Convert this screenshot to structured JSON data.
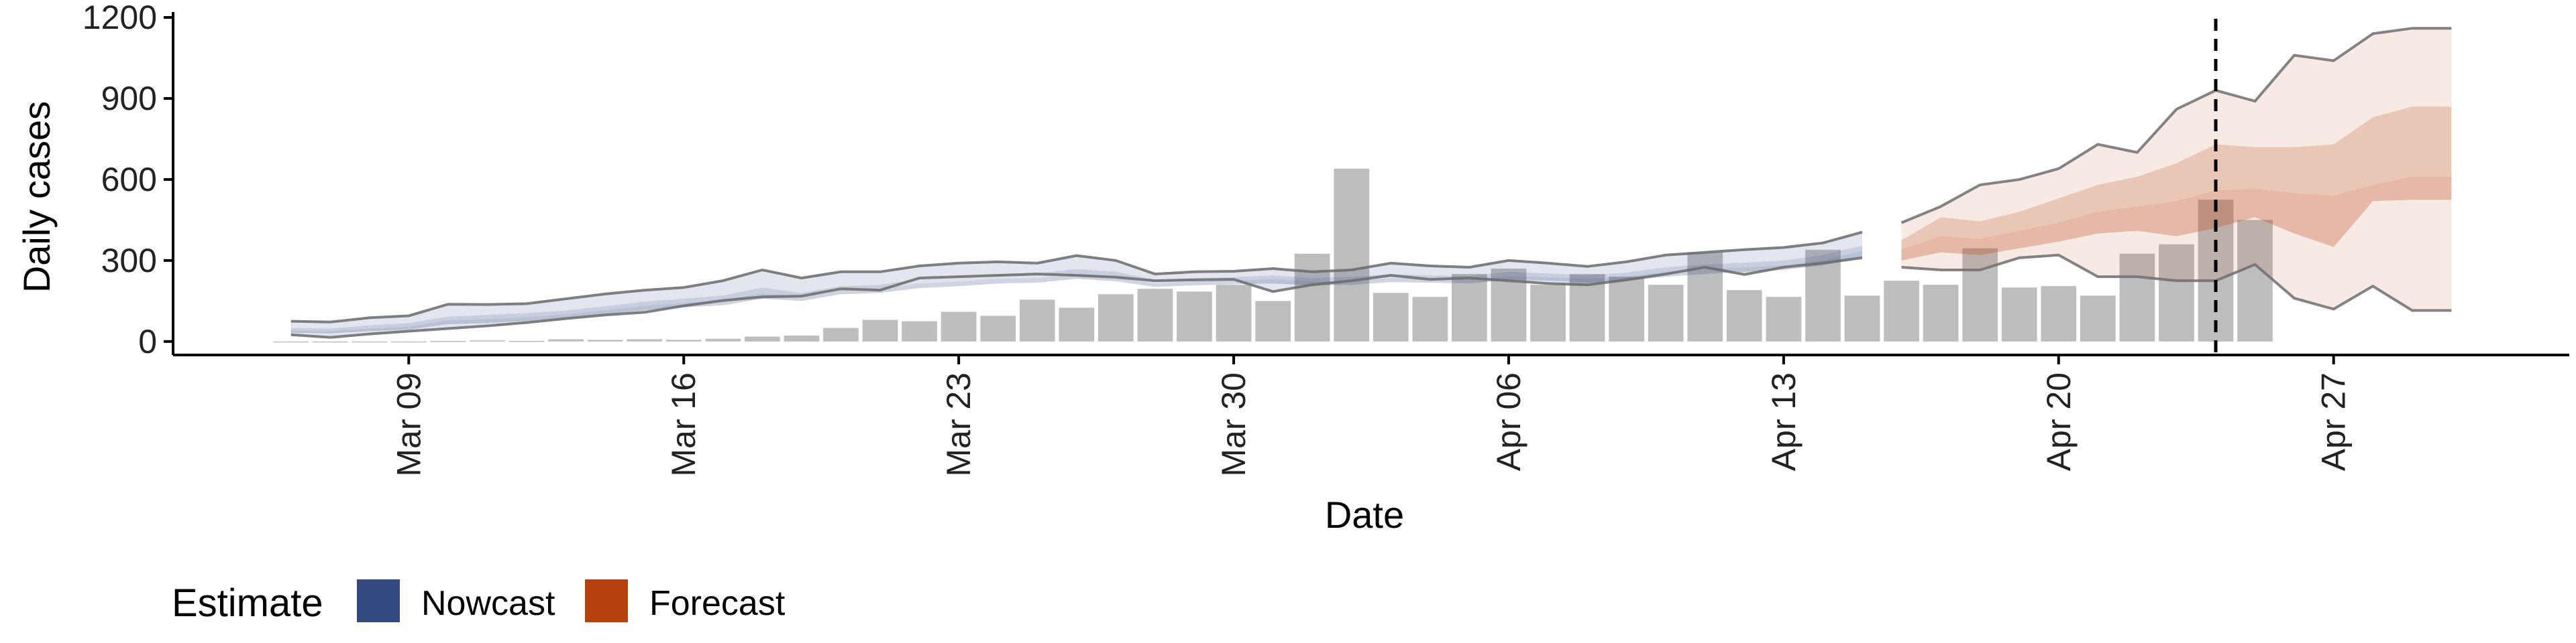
{
  "chart_data": {
    "type": "bar",
    "xlabel": "Date",
    "ylabel": "Daily cases",
    "ylim": [
      -50,
      1220
    ],
    "y_ticks": [
      0,
      300,
      600,
      900,
      1200
    ],
    "x_ticks": [
      {
        "date": "2020-03-09",
        "label": "Mar 09"
      },
      {
        "date": "2020-03-16",
        "label": "Mar 16"
      },
      {
        "date": "2020-03-23",
        "label": "Mar 23"
      },
      {
        "date": "2020-03-30",
        "label": "Mar 30"
      },
      {
        "date": "2020-04-06",
        "label": "Apr 06"
      },
      {
        "date": "2020-04-13",
        "label": "Apr 13"
      },
      {
        "date": "2020-04-20",
        "label": "Apr 20"
      },
      {
        "date": "2020-04-27",
        "label": "Apr 27"
      }
    ],
    "xlim": [
      "2020-03-03",
      "2020-05-03"
    ],
    "grid": false,
    "forecast_date": "2020-04-24",
    "colors": {
      "bars": "#bdbdbd",
      "nowcast": "#3c4e86",
      "forecast": "#c0491c",
      "outer_lines": "#6e6e6e"
    },
    "reported_cases": {
      "dates": [
        "2020-03-06",
        "2020-03-07",
        "2020-03-08",
        "2020-03-09",
        "2020-03-10",
        "2020-03-11",
        "2020-03-12",
        "2020-03-13",
        "2020-03-14",
        "2020-03-15",
        "2020-03-16",
        "2020-03-17",
        "2020-03-18",
        "2020-03-19",
        "2020-03-20",
        "2020-03-21",
        "2020-03-22",
        "2020-03-23",
        "2020-03-24",
        "2020-03-25",
        "2020-03-26",
        "2020-03-27",
        "2020-03-28",
        "2020-03-29",
        "2020-03-30",
        "2020-03-31",
        "2020-04-01",
        "2020-04-02",
        "2020-04-03",
        "2020-04-04",
        "2020-04-05",
        "2020-04-06",
        "2020-04-07",
        "2020-04-08",
        "2020-04-09",
        "2020-04-10",
        "2020-04-11",
        "2020-04-12",
        "2020-04-13",
        "2020-04-14",
        "2020-04-15",
        "2020-04-16",
        "2020-04-17",
        "2020-04-18",
        "2020-04-19",
        "2020-04-20",
        "2020-04-21",
        "2020-04-22",
        "2020-04-23",
        "2020-04-24",
        "2020-04-25"
      ],
      "values": [
        0,
        0,
        0,
        0,
        2,
        4,
        2,
        8,
        6,
        8,
        6,
        10,
        18,
        22,
        50,
        80,
        75,
        110,
        95,
        155,
        125,
        175,
        195,
        185,
        210,
        150,
        325,
        640,
        180,
        165,
        250,
        270,
        210,
        250,
        240,
        210,
        330,
        190,
        165,
        340,
        170,
        225,
        210,
        345,
        200,
        205,
        170,
        325,
        360,
        525,
        450
      ]
    },
    "series": [
      {
        "name": "Nowcast",
        "dates": [
          "2020-03-06",
          "2020-03-07",
          "2020-03-08",
          "2020-03-09",
          "2020-03-10",
          "2020-03-11",
          "2020-03-12",
          "2020-03-13",
          "2020-03-14",
          "2020-03-15",
          "2020-03-16",
          "2020-03-17",
          "2020-03-18",
          "2020-03-19",
          "2020-03-20",
          "2020-03-21",
          "2020-03-22",
          "2020-03-23",
          "2020-03-24",
          "2020-03-25",
          "2020-03-26",
          "2020-03-27",
          "2020-03-28",
          "2020-03-29",
          "2020-03-30",
          "2020-03-31",
          "2020-04-01",
          "2020-04-02",
          "2020-04-03",
          "2020-04-04",
          "2020-04-05",
          "2020-04-06",
          "2020-04-07",
          "2020-04-08",
          "2020-04-09",
          "2020-04-10",
          "2020-04-11",
          "2020-04-12",
          "2020-04-13",
          "2020-04-14",
          "2020-04-15"
        ],
        "upper_90": [
          75,
          72,
          88,
          95,
          138,
          137,
          140,
          158,
          176,
          190,
          200,
          225,
          265,
          235,
          258,
          258,
          280,
          290,
          295,
          290,
          318,
          300,
          250,
          258,
          260,
          270,
          258,
          265,
          290,
          280,
          275,
          300,
          290,
          278,
          295,
          320,
          330,
          340,
          348,
          365,
          405
        ],
        "upper_50": [
          50,
          48,
          60,
          68,
          92,
          98,
          105,
          115,
          130,
          148,
          158,
          170,
          200,
          180,
          205,
          210,
          232,
          240,
          250,
          252,
          268,
          258,
          228,
          235,
          238,
          245,
          235,
          240,
          250,
          245,
          242,
          258,
          252,
          245,
          255,
          275,
          285,
          292,
          300,
          320,
          355
        ],
        "median": [
          40,
          38,
          48,
          55,
          78,
          82,
          90,
          100,
          115,
          132,
          142,
          152,
          178,
          165,
          190,
          195,
          215,
          222,
          232,
          235,
          250,
          240,
          215,
          222,
          225,
          230,
          222,
          225,
          235,
          232,
          228,
          242,
          238,
          232,
          240,
          258,
          268,
          275,
          282,
          300,
          335
        ],
        "lower_50": [
          32,
          30,
          38,
          44,
          64,
          68,
          76,
          86,
          100,
          116,
          126,
          134,
          158,
          150,
          175,
          180,
          198,
          205,
          215,
          218,
          232,
          223,
          202,
          208,
          212,
          215,
          208,
          210,
          220,
          218,
          215,
          228,
          225,
          218,
          225,
          240,
          250,
          258,
          265,
          282,
          315
        ],
        "lower_90": [
          25,
          15,
          28,
          38,
          48,
          58,
          70,
          85,
          98,
          108,
          132,
          152,
          165,
          168,
          195,
          190,
          235,
          240,
          245,
          250,
          245,
          238,
          225,
          228,
          230,
          185,
          210,
          225,
          245,
          230,
          235,
          225,
          215,
          210,
          228,
          250,
          275,
          248,
          275,
          290,
          310
        ]
      },
      {
        "name": "Forecast",
        "dates": [
          "2020-04-16",
          "2020-04-17",
          "2020-04-18",
          "2020-04-19",
          "2020-04-20",
          "2020-04-21",
          "2020-04-22",
          "2020-04-23",
          "2020-04-24",
          "2020-04-25",
          "2020-04-26",
          "2020-04-27",
          "2020-04-28",
          "2020-04-29",
          "2020-04-30"
        ],
        "upper_90": [
          440,
          500,
          580,
          600,
          640,
          730,
          700,
          860,
          930,
          890,
          1060,
          1040,
          1140,
          1160,
          1160
        ],
        "upper_50": [
          375,
          460,
          445,
          480,
          530,
          580,
          610,
          660,
          730,
          720,
          720,
          730,
          830,
          870,
          870
        ],
        "median": [
          340,
          390,
          380,
          410,
          440,
          480,
          500,
          520,
          560,
          565,
          550,
          540,
          580,
          610,
          610
        ],
        "lower_50": [
          300,
          330,
          320,
          345,
          370,
          400,
          410,
          390,
          420,
          460,
          400,
          350,
          520,
          525,
          525
        ],
        "lower_90": [
          275,
          265,
          265,
          310,
          320,
          240,
          240,
          225,
          225,
          285,
          160,
          120,
          205,
          115,
          115
        ]
      }
    ],
    "legend": {
      "title": "Estimate",
      "position": "bottom-left",
      "items": [
        {
          "label": "Nowcast",
          "color": "#34497f"
        },
        {
          "label": "Forecast",
          "color": "#b7410e"
        }
      ]
    }
  }
}
